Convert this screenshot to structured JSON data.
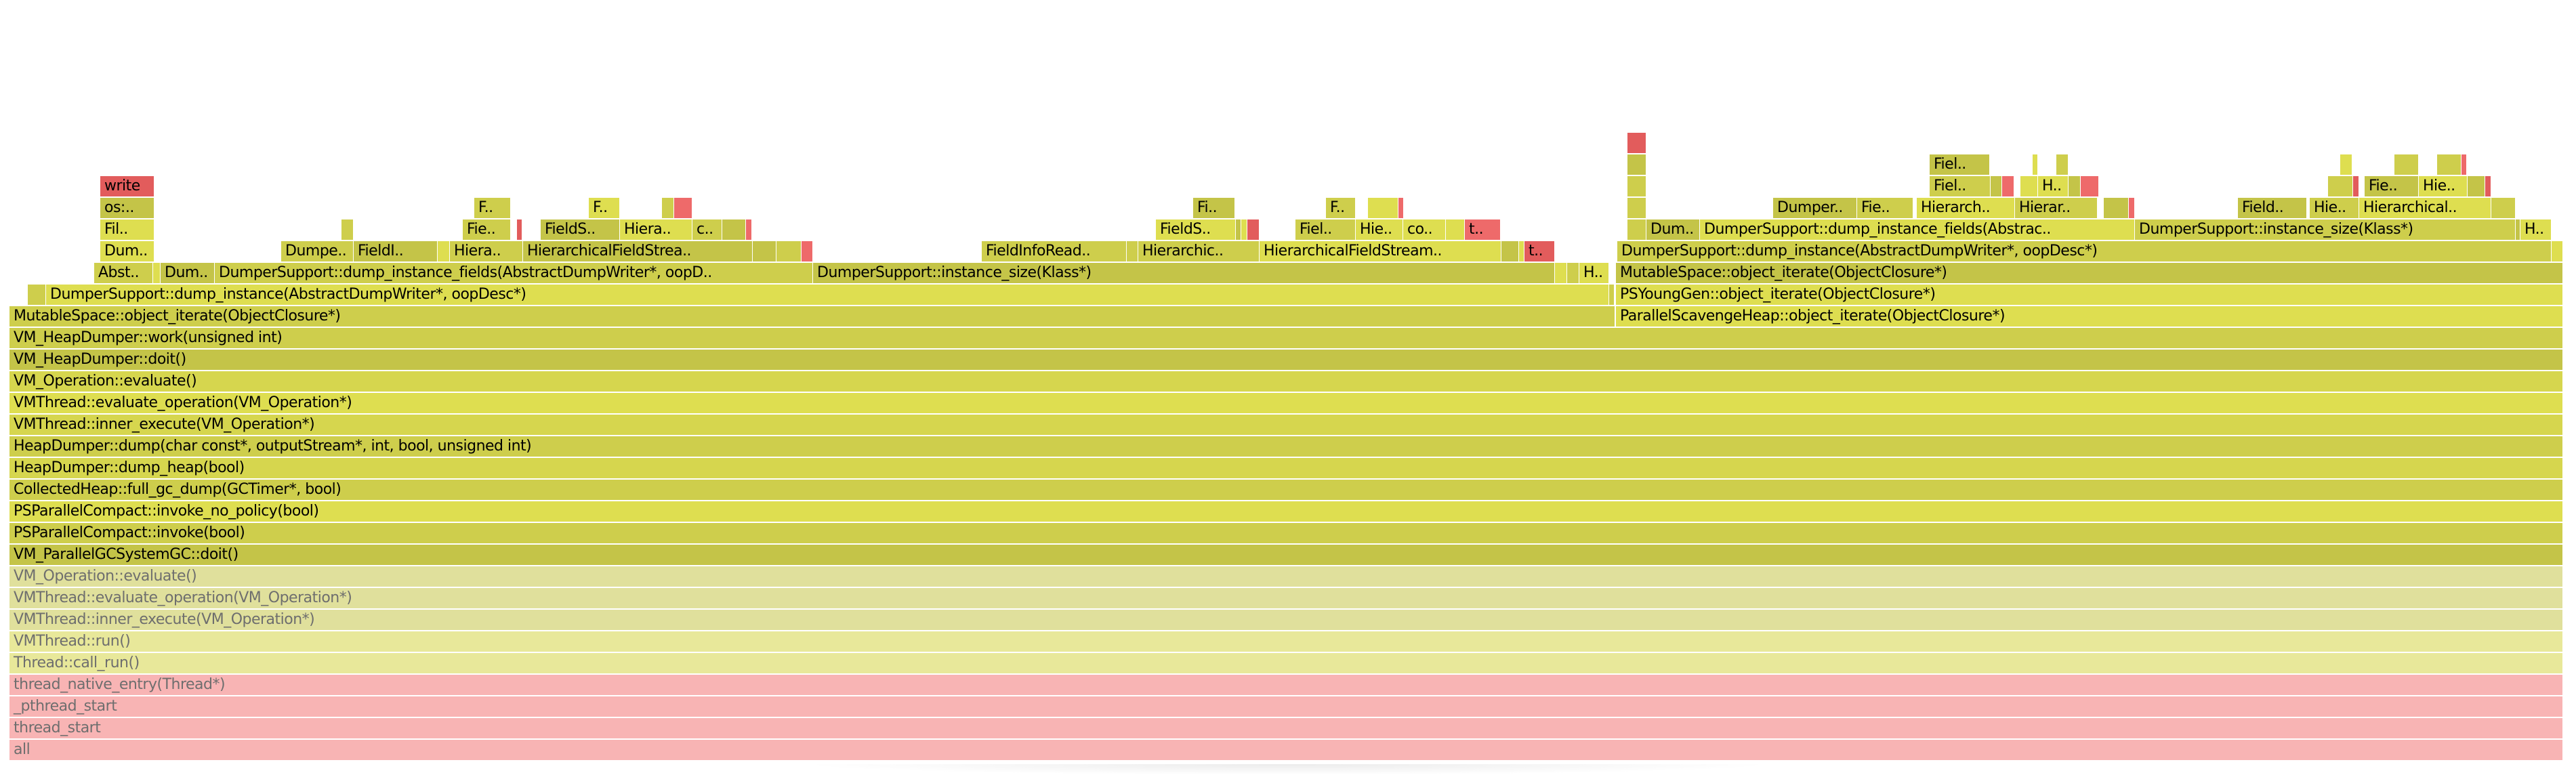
{
  "tones": {
    "K": "#f8b4b4",
    "P1": "#e0e09c",
    "P2": "#e8e89a",
    "Y1": "#dede50",
    "Y2": "#cece4c",
    "Y3": "#c4c448",
    "Y4": "#d6d64e",
    "R1": "#e25c5c",
    "R2": "#ee6a6a"
  },
  "frames": [
    [
      "all",
      "K"
    ],
    [
      "thread_start",
      "K"
    ],
    [
      "_pthread_start",
      "K"
    ],
    [
      "thread_native_entry(Thread*)",
      "K"
    ],
    [
      "Thread::call_run()",
      "P2"
    ],
    [
      "VMThread::run()",
      "P2"
    ],
    [
      "VMThread::inner_execute(VM_Operation*)",
      "P1"
    ],
    [
      "VMThread::evaluate_operation(VM_Operation*)",
      "P1"
    ],
    [
      "VM_Operation::evaluate()",
      "P1"
    ],
    [
      "VM_ParallelGCSystemGC::doit()",
      "Y3"
    ],
    [
      "PSParallelCompact::invoke(bool)",
      "Y2"
    ],
    [
      "PSParallelCompact::invoke_no_policy(bool)",
      "Y1"
    ],
    [
      "CollectedHeap::full_gc_dump(GCTimer*, bool)",
      "Y2"
    ],
    [
      "HeapDumper::dump_heap(bool)",
      "Y4"
    ],
    [
      "HeapDumper::dump(char const*, outputStream*, int, bool, unsigned int)",
      "Y2"
    ],
    [
      "VMThread::inner_execute(VM_Operation*)",
      "Y4"
    ],
    [
      "VMThread::evaluate_operation(VM_Operation*)",
      "Y1"
    ],
    [
      "VM_Operation::evaluate()",
      "Y4"
    ],
    [
      "VM_HeapDumper::doit()",
      "Y3"
    ],
    [
      "VM_HeapDumper::work(unsigned int)",
      "Y2"
    ],
    [
      "MutableSpace::object_iterate(ObjectClosure*)",
      "Y2"
    ],
    [
      "ParallelScavengeHeap::object_iterate(ObjectClosure*)",
      "Y1"
    ],
    [
      "",
      "Y2"
    ],
    [
      "DumperSupport::dump_instance(AbstractDumpWriter*, oopDesc*)",
      "Y1"
    ],
    [
      "",
      "Y2"
    ],
    [
      "PSYoungGen::object_iterate(ObjectClosure*)",
      "Y1"
    ],
    [
      "Abst..",
      "Y2"
    ],
    [
      "",
      "Y1"
    ],
    [
      "Dum..",
      "Y3"
    ],
    [
      "DumperSupport::dump_instance_fields(AbstractDumpWriter*, oopD..",
      "Y2"
    ],
    [
      "DumperSupport::instance_size(Klass*)",
      "Y3"
    ],
    [
      "",
      "Y1"
    ],
    [
      "",
      "Y2"
    ],
    [
      "H..",
      "Y1"
    ],
    [
      "MutableSpace::object_iterate(ObjectClosure*)",
      "Y3"
    ],
    [
      "Dum..",
      "Y1"
    ],
    [
      "Dumpe..",
      "Y2"
    ],
    [
      "FieldI..",
      "Y3"
    ],
    [
      "",
      "Y1"
    ],
    [
      "Hiera..",
      "Y2"
    ],
    [
      "HierarchicalFieldStrea..",
      "Y3"
    ],
    [
      "",
      "Y3"
    ],
    [
      "",
      "Y2"
    ],
    [
      "",
      "R2"
    ],
    [
      "FieldInfoRead..",
      "Y2"
    ],
    [
      "",
      "Y2"
    ],
    [
      "Hierarchic..",
      "Y2"
    ],
    [
      "HierarchicalFieldStream..",
      "Y1"
    ],
    [
      "",
      "Y3"
    ],
    [
      "",
      "Y1"
    ],
    [
      "t..",
      "R1"
    ],
    [
      "DumperSupport::dump_instance(AbstractDumpWriter*, oopDesc*)",
      "Y2"
    ],
    [
      "",
      "Y1"
    ],
    [
      "Fil..",
      "Y1"
    ],
    [
      "",
      "Y2"
    ],
    [
      "Fie..",
      "Y2"
    ],
    [
      "",
      "R1"
    ],
    [
      "FieldS..",
      "Y3"
    ],
    [
      "Hiera..",
      "Y1"
    ],
    [
      "c..",
      "Y2"
    ],
    [
      "",
      "Y3"
    ],
    [
      "",
      "R2"
    ],
    [
      "FieldS..",
      "Y1"
    ],
    [
      "",
      "Y3"
    ],
    [
      "",
      "Y1"
    ],
    [
      "",
      "R1"
    ],
    [
      "Fiel..",
      "Y2"
    ],
    [
      "Hie..",
      "Y1"
    ],
    [
      "co..",
      "Y1"
    ],
    [
      "",
      "Y1"
    ],
    [
      "t..",
      "R2"
    ],
    [
      "",
      "Y2"
    ],
    [
      "Dum..",
      "Y3"
    ],
    [
      "DumperSupport::dump_instance_fields(Abstrac..",
      "Y1"
    ],
    [
      "DumperSupport::instance_size(Klass*)",
      "Y2"
    ],
    [
      "",
      "Y3"
    ],
    [
      "H..",
      "Y1"
    ],
    [
      "os:..",
      "Y3"
    ],
    [
      "F..",
      "Y2"
    ],
    [
      "F..",
      "Y1"
    ],
    [
      "",
      "Y2"
    ],
    [
      "",
      "R2"
    ],
    [
      "Fi..",
      "Y3"
    ],
    [
      "F..",
      "Y2"
    ],
    [
      "",
      "Y1"
    ],
    [
      "",
      "R2"
    ],
    [
      "",
      "Y2"
    ],
    [
      "Dumper..",
      "Y3"
    ],
    [
      "Fie..",
      "Y2"
    ],
    [
      "Hierarch..",
      "Y1"
    ],
    [
      "Hierar..",
      "Y2"
    ],
    [
      "",
      "Y3"
    ],
    [
      "",
      "R2"
    ],
    [
      "Field..",
      "Y3"
    ],
    [
      "Hie..",
      "Y2"
    ],
    [
      "Hierarchical..",
      "Y1"
    ],
    [
      "",
      "Y2"
    ],
    [
      "write",
      "R1"
    ],
    [
      "",
      "Y2"
    ],
    [
      "Fiel..",
      "Y2"
    ],
    [
      "",
      "Y3"
    ],
    [
      "",
      "R2"
    ],
    [
      "",
      "Y1"
    ],
    [
      "H..",
      "Y1"
    ],
    [
      "",
      "Y3"
    ],
    [
      "",
      "R2"
    ],
    [
      "",
      "Y2"
    ],
    [
      "",
      "R1"
    ],
    [
      "Fie..",
      "Y3"
    ],
    [
      "Hie..",
      "Y1"
    ],
    [
      "",
      "Y3"
    ],
    [
      "",
      "R1"
    ],
    [
      "",
      "Y3"
    ],
    [
      "Fiel..",
      "Y3"
    ],
    [
      "",
      "Y1"
    ],
    [
      "",
      "Y2"
    ],
    [
      "",
      "Y1"
    ],
    [
      "",
      "Y2"
    ],
    [
      "",
      "Y2"
    ],
    [
      "",
      "R2"
    ],
    [
      "",
      "R1"
    ]
  ]
}
